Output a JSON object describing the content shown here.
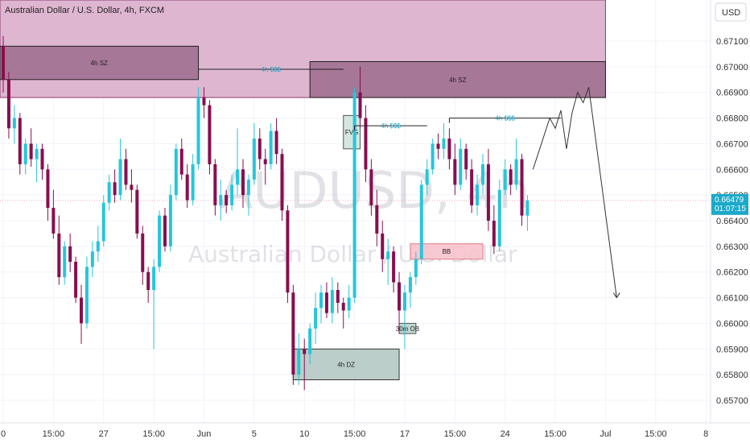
{
  "header": {
    "symbol_title": "Australian Dollar / U.S. Dollar, 4h, FXCM",
    "currency_button": "USD"
  },
  "watermark": {
    "ticker": "AUDUSD, 4h",
    "name": "Australian Dollar / U.S. Dollar"
  },
  "colors": {
    "bull": "#26c6da",
    "bear": "#880e4f",
    "supply_zone": "#d8a9c8",
    "supply_zone_dark": "#a07090",
    "demand_zone": "#b5c9c3",
    "order_block": "#f8c3cc",
    "accent_price": "#1ca9c9"
  },
  "current_price": {
    "value": "0.66479",
    "countdown": "01:07:15"
  },
  "chart_data": {
    "type": "candlestick",
    "y_axis": {
      "min": 0.6565,
      "max": 0.6722,
      "ticks": [
        "0.67100",
        "0.67000",
        "0.66900",
        "0.66800",
        "0.66700",
        "0.66600",
        "0.66500",
        "0.66400",
        "0.66300",
        "0.66200",
        "0.66100",
        "0.66000",
        "0.65900",
        "0.65800",
        "0.65700"
      ]
    },
    "x_axis": {
      "ticks": [
        {
          "label": "0",
          "bar": 0
        },
        {
          "label": "15:00",
          "bar": 9
        },
        {
          "label": "27",
          "bar": 18
        },
        {
          "label": "15:00",
          "bar": 27
        },
        {
          "label": "Jun",
          "bar": 36
        },
        {
          "label": "5",
          "bar": 45
        },
        {
          "label": "10",
          "bar": 54
        },
        {
          "label": "15:00",
          "bar": 63
        },
        {
          "label": "17",
          "bar": 72
        },
        {
          "label": "15:00",
          "bar": 81
        },
        {
          "label": "24",
          "bar": 90
        },
        {
          "label": "15:00",
          "bar": 99
        },
        {
          "label": "Jul",
          "bar": 108
        },
        {
          "label": "15:00",
          "bar": 117
        },
        {
          "label": "8",
          "bar": 126
        }
      ]
    },
    "candles": [
      [
        0.6708,
        0.6712,
        0.669,
        0.6695
      ],
      [
        0.6695,
        0.6698,
        0.6672,
        0.6676
      ],
      [
        0.6676,
        0.6685,
        0.667,
        0.668
      ],
      [
        0.668,
        0.6682,
        0.6658,
        0.6662
      ],
      [
        0.6662,
        0.6672,
        0.6658,
        0.667
      ],
      [
        0.667,
        0.6676,
        0.6661,
        0.6664
      ],
      [
        0.6664,
        0.667,
        0.6655,
        0.6668
      ],
      [
        0.6668,
        0.667,
        0.6656,
        0.666
      ],
      [
        0.666,
        0.6662,
        0.664,
        0.6645
      ],
      [
        0.6645,
        0.6652,
        0.6633,
        0.6635
      ],
      [
        0.6635,
        0.6642,
        0.6615,
        0.6618
      ],
      [
        0.6618,
        0.6632,
        0.6615,
        0.663
      ],
      [
        0.663,
        0.6635,
        0.662,
        0.6624
      ],
      [
        0.6624,
        0.6626,
        0.6608,
        0.661
      ],
      [
        0.661,
        0.6615,
        0.6592,
        0.66
      ],
      [
        0.66,
        0.6626,
        0.6598,
        0.6622
      ],
      [
        0.6622,
        0.6632,
        0.6618,
        0.6628
      ],
      [
        0.6628,
        0.6638,
        0.6624,
        0.6632
      ],
      [
        0.6632,
        0.665,
        0.663,
        0.6647
      ],
      [
        0.6647,
        0.6658,
        0.6644,
        0.6655
      ],
      [
        0.6655,
        0.666,
        0.6647,
        0.665
      ],
      [
        0.665,
        0.6672,
        0.6648,
        0.6664
      ],
      [
        0.6664,
        0.6668,
        0.6652,
        0.6654
      ],
      [
        0.6654,
        0.666,
        0.6647,
        0.6652
      ],
      [
        0.6652,
        0.6654,
        0.6633,
        0.6635
      ],
      [
        0.6635,
        0.6638,
        0.6615,
        0.662
      ],
      [
        0.662,
        0.6622,
        0.6608,
        0.6613
      ],
      [
        0.6613,
        0.6625,
        0.659,
        0.6622
      ],
      [
        0.6622,
        0.6644,
        0.662,
        0.6642
      ],
      [
        0.6642,
        0.6645,
        0.6628,
        0.663
      ],
      [
        0.663,
        0.6654,
        0.6628,
        0.665
      ],
      [
        0.665,
        0.667,
        0.6648,
        0.6668
      ],
      [
        0.6668,
        0.6672,
        0.6656,
        0.6658
      ],
      [
        0.6658,
        0.6662,
        0.6645,
        0.6648
      ],
      [
        0.6648,
        0.6666,
        0.6646,
        0.6662
      ],
      [
        0.6662,
        0.6692,
        0.666,
        0.6688
      ],
      [
        0.6688,
        0.6692,
        0.668,
        0.6685
      ],
      [
        0.6685,
        0.6687,
        0.6658,
        0.6662
      ],
      [
        0.6662,
        0.6664,
        0.6642,
        0.6646
      ],
      [
        0.6646,
        0.6656,
        0.664,
        0.665
      ],
      [
        0.665,
        0.6652,
        0.6643,
        0.6646
      ],
      [
        0.6646,
        0.6658,
        0.6644,
        0.6654
      ],
      [
        0.6654,
        0.6676,
        0.665,
        0.666
      ],
      [
        0.666,
        0.6664,
        0.6645,
        0.665
      ],
      [
        0.665,
        0.6658,
        0.6642,
        0.6656
      ],
      [
        0.6656,
        0.6678,
        0.6654,
        0.6672
      ],
      [
        0.6672,
        0.6676,
        0.666,
        0.6664
      ],
      [
        0.6664,
        0.6668,
        0.6654,
        0.6662
      ],
      [
        0.6662,
        0.6678,
        0.666,
        0.6675
      ],
      [
        0.6675,
        0.668,
        0.6662,
        0.6666
      ],
      [
        0.6666,
        0.6668,
        0.664,
        0.6644
      ],
      [
        0.6644,
        0.6646,
        0.6608,
        0.6612
      ],
      [
        0.6612,
        0.6615,
        0.6576,
        0.658
      ],
      [
        0.658,
        0.6596,
        0.6576,
        0.659
      ],
      [
        0.659,
        0.6594,
        0.6574,
        0.6588
      ],
      [
        0.6588,
        0.66,
        0.6584,
        0.6598
      ],
      [
        0.6598,
        0.6612,
        0.6592,
        0.6606
      ],
      [
        0.6606,
        0.6615,
        0.66,
        0.6612
      ],
      [
        0.6612,
        0.6616,
        0.6602,
        0.6604
      ],
      [
        0.6604,
        0.6618,
        0.66,
        0.6613
      ],
      [
        0.6613,
        0.6616,
        0.6604,
        0.6608
      ],
      [
        0.6608,
        0.661,
        0.6598,
        0.6605
      ],
      [
        0.6605,
        0.6615,
        0.6602,
        0.661
      ],
      [
        0.661,
        0.6692,
        0.6608,
        0.669
      ],
      [
        0.669,
        0.67,
        0.6676,
        0.668
      ],
      [
        0.668,
        0.6685,
        0.6655,
        0.666
      ],
      [
        0.666,
        0.6664,
        0.6642,
        0.6646
      ],
      [
        0.6646,
        0.6652,
        0.663,
        0.6635
      ],
      [
        0.6635,
        0.664,
        0.662,
        0.6625
      ],
      [
        0.6625,
        0.6633,
        0.6615,
        0.6628
      ],
      [
        0.6628,
        0.663,
        0.6612,
        0.6616
      ],
      [
        0.6616,
        0.662,
        0.6596,
        0.6605
      ],
      [
        0.6605,
        0.6615,
        0.659,
        0.6612
      ],
      [
        0.6612,
        0.662,
        0.6606,
        0.6618
      ],
      [
        0.6618,
        0.6628,
        0.6615,
        0.6625
      ],
      [
        0.6625,
        0.6656,
        0.6623,
        0.6654
      ],
      [
        0.6654,
        0.6664,
        0.665,
        0.666
      ],
      [
        0.666,
        0.6672,
        0.6658,
        0.667
      ],
      [
        0.667,
        0.6674,
        0.6664,
        0.6668
      ],
      [
        0.6668,
        0.6678,
        0.6664,
        0.6672
      ],
      [
        0.6672,
        0.6676,
        0.666,
        0.6664
      ],
      [
        0.6664,
        0.667,
        0.665,
        0.6654
      ],
      [
        0.6654,
        0.6672,
        0.6652,
        0.6668
      ],
      [
        0.6668,
        0.667,
        0.6656,
        0.666
      ],
      [
        0.666,
        0.6664,
        0.6643,
        0.6646
      ],
      [
        0.6646,
        0.6658,
        0.6642,
        0.6654
      ],
      [
        0.6654,
        0.6666,
        0.665,
        0.6662
      ],
      [
        0.6662,
        0.6668,
        0.6636,
        0.664
      ],
      [
        0.664,
        0.6646,
        0.6627,
        0.663
      ],
      [
        0.663,
        0.6656,
        0.6628,
        0.6652
      ],
      [
        0.6652,
        0.6664,
        0.665,
        0.666
      ],
      [
        0.666,
        0.6662,
        0.665,
        0.6654
      ],
      [
        0.6654,
        0.6672,
        0.6652,
        0.6664
      ],
      [
        0.6664,
        0.6666,
        0.6638,
        0.6642
      ],
      [
        0.6642,
        0.665,
        0.6636,
        0.66479
      ]
    ],
    "zones": [
      {
        "name": "4h SZ",
        "label": "4h SZ",
        "x0": -2,
        "x1": 35,
        "y0": 0.6695,
        "y1": 0.6708,
        "kind": "supply_dark"
      },
      {
        "name": "4h SZ",
        "label": "4h SZ",
        "x0": 55,
        "x1": 108,
        "y0": 0.6688,
        "y1": 0.6702,
        "kind": "supply_dark"
      },
      {
        "name": "4h DZ",
        "label": "4h DZ",
        "x0": 52,
        "x1": 71,
        "y0": 0.6578,
        "y1": 0.659,
        "kind": "demand"
      },
      {
        "name": "FVG",
        "label": "FVG",
        "x0": 61,
        "x1": 64,
        "y0": 0.6668,
        "y1": 0.6681,
        "kind": "fvg"
      },
      {
        "name": "30m OB",
        "label": "30m OB",
        "x0": 71,
        "x1": 74,
        "y0": 0.6596,
        "y1": 0.66,
        "kind": "ob30"
      },
      {
        "name": "BB",
        "label": "BB",
        "x0": 73,
        "x1": 86,
        "y0": 0.6625,
        "y1": 0.6631,
        "kind": "bb"
      }
    ],
    "liquidity_lines": [
      {
        "label": "4h $$$",
        "x0": 35,
        "x1": 61,
        "y": 0.6699
      },
      {
        "label": "4h $$$",
        "x0": 63,
        "x1": 76,
        "y": 0.6677
      },
      {
        "label": "4h $$$",
        "x0": 80,
        "x1": 100,
        "y": 0.668
      }
    ],
    "projection": [
      [
        95,
        0.666
      ],
      [
        98,
        0.668
      ],
      [
        99,
        0.6676
      ],
      [
        100,
        0.6683
      ],
      [
        101,
        0.6668
      ],
      [
        102,
        0.6682
      ],
      [
        103,
        0.669
      ],
      [
        104,
        0.6686
      ],
      [
        105,
        0.6692
      ],
      [
        110,
        0.661
      ]
    ]
  }
}
